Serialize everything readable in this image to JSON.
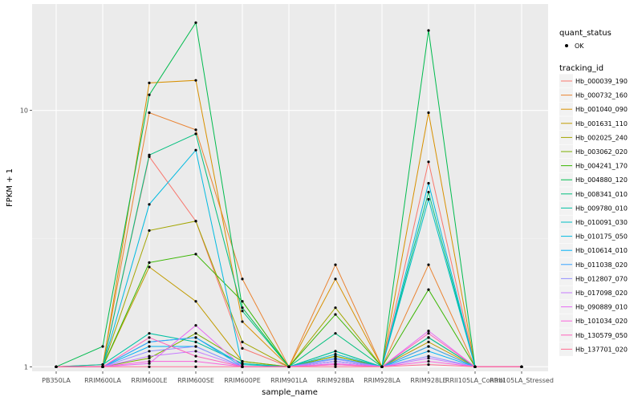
{
  "chart_data": {
    "type": "line",
    "xlabel": "sample_name",
    "ylabel": "FPKM + 1",
    "y_scale": "log10",
    "ylim": [
      0.96,
      26
    ],
    "y_ticks": [
      1,
      10
    ],
    "categories": [
      "PB350LA",
      "RRIM600LA",
      "RRIM600LE",
      "RRIM600SE",
      "RRIM600PE",
      "RRIM901LA",
      "RRIM928BA",
      "RRIM928LA",
      "RRIM928LE",
      "RRII105LA_Control",
      "RRII105LA_Stressed"
    ],
    "grid": true,
    "legend": {
      "position": "right",
      "shape_title": "quant_status",
      "shape_label": "OK",
      "color_title": "tracking_id"
    },
    "series": [
      {
        "name": "Hb_000039_190",
        "color": "#F8766D",
        "values": [
          1,
          1,
          6.6,
          3.7,
          1.18,
          1,
          1.1,
          1,
          6.3,
          1,
          1
        ]
      },
      {
        "name": "Hb_000732_160",
        "color": "#EA8331",
        "values": [
          1,
          1.02,
          9.8,
          8.4,
          2.2,
          1,
          2.5,
          1,
          2.5,
          1,
          1
        ]
      },
      {
        "name": "Hb_001040_090",
        "color": "#D89000",
        "values": [
          1,
          1,
          12.8,
          13.1,
          1.5,
          1,
          2.2,
          1,
          9.8,
          1,
          1
        ]
      },
      {
        "name": "Hb_001631_110",
        "color": "#C09B00",
        "values": [
          1,
          1,
          2.45,
          1.8,
          1.05,
          1,
          1.1,
          1,
          1.25,
          1,
          1
        ]
      },
      {
        "name": "Hb_002025_240",
        "color": "#A3A500",
        "values": [
          1,
          1,
          3.4,
          3.7,
          1.25,
          1,
          1.7,
          1,
          1.2,
          1,
          1
        ]
      },
      {
        "name": "Hb_003062_020",
        "color": "#7CAE00",
        "values": [
          1,
          1,
          1.08,
          1.35,
          1.05,
          1,
          1.1,
          1,
          1.3,
          1,
          1
        ]
      },
      {
        "name": "Hb_004241_170",
        "color": "#39B600",
        "values": [
          1,
          1,
          2.55,
          2.75,
          1.8,
          1,
          1.6,
          1,
          2.0,
          1,
          1
        ]
      },
      {
        "name": "Hb_004880_120",
        "color": "#00BB4E",
        "values": [
          1,
          1.2,
          11.5,
          22.0,
          1.7,
          1,
          1.15,
          1,
          20.5,
          1,
          1
        ]
      },
      {
        "name": "Hb_008341_010",
        "color": "#00BF7D",
        "values": [
          1,
          1,
          6.7,
          8.1,
          1.65,
          1,
          1.35,
          1,
          4.8,
          1,
          1
        ]
      },
      {
        "name": "Hb_009780_010",
        "color": "#00C1A3",
        "values": [
          1,
          1.02,
          1.35,
          1.25,
          1.03,
          1,
          1.15,
          1,
          1.3,
          1,
          1
        ]
      },
      {
        "name": "Hb_010091_030",
        "color": "#00BFC4",
        "values": [
          1,
          1,
          1.25,
          1.3,
          1.02,
          1,
          1.12,
          1,
          4.5,
          1,
          1
        ]
      },
      {
        "name": "Hb_010175_050",
        "color": "#00BAE0",
        "values": [
          1,
          1,
          4.3,
          7.0,
          1.0,
          1,
          1.05,
          1,
          5.2,
          1,
          1
        ]
      },
      {
        "name": "Hb_010614_010",
        "color": "#00B0F6",
        "values": [
          1,
          1,
          1.2,
          1.2,
          1.0,
          1,
          1.05,
          1,
          1.15,
          1,
          1
        ]
      },
      {
        "name": "Hb_011038_020",
        "color": "#35A2FF",
        "values": [
          1,
          1,
          1.25,
          1.3,
          1.0,
          1,
          1.08,
          1,
          1.2,
          1,
          1
        ]
      },
      {
        "name": "Hb_012807_070",
        "color": "#9590FF",
        "values": [
          1,
          1,
          1.15,
          1.2,
          1.0,
          1,
          1.07,
          1,
          1.1,
          1,
          1
        ]
      },
      {
        "name": "Hb_017098_020",
        "color": "#C77CFF",
        "values": [
          1,
          1,
          1.1,
          1.15,
          1.0,
          1,
          1.05,
          1,
          1.08,
          1,
          1
        ]
      },
      {
        "name": "Hb_090889_010",
        "color": "#E76BF3",
        "values": [
          1,
          1,
          1.03,
          1.45,
          1.0,
          1,
          1.03,
          1,
          1.38,
          1,
          1
        ]
      },
      {
        "name": "Hb_101034_020",
        "color": "#FA62DB",
        "values": [
          1,
          1,
          1.05,
          1.05,
          1.0,
          1,
          1.02,
          1,
          1.05,
          1,
          1
        ]
      },
      {
        "name": "Hb_130579_050",
        "color": "#FF62BC",
        "values": [
          1,
          1,
          1.3,
          1.1,
          1.0,
          1,
          1.02,
          1,
          1.35,
          1,
          1
        ]
      },
      {
        "name": "Hb_137701_020",
        "color": "#FF6C91",
        "values": [
          1,
          1,
          1.0,
          1.0,
          1.0,
          1,
          1.0,
          1,
          1.02,
          1,
          1
        ]
      }
    ]
  }
}
